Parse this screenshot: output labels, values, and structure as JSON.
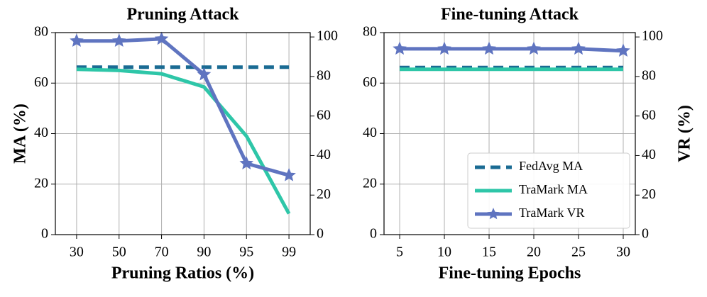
{
  "chart_data": [
    {
      "type": "line",
      "title": "Pruning Attack",
      "xlabel": "Pruning Ratios (%)",
      "ylabel": "MA (%)",
      "categories": [
        "30",
        "50",
        "70",
        "90",
        "95",
        "99"
      ],
      "ylim": [
        0,
        80
      ],
      "yticks": [
        0,
        20,
        40,
        60,
        80
      ],
      "y2lim": [
        0,
        102.2
      ],
      "y2ticks": [
        0,
        20,
        40,
        60,
        80,
        100
      ],
      "grid": true,
      "series": [
        {
          "name": "FedAvg MA",
          "color": "#1a6b93",
          "style": "dashed",
          "values": [
            66.3,
            66.3,
            66.3,
            66.3,
            66.3,
            66.3
          ]
        },
        {
          "name": "TraMark MA",
          "color": "#2ec6a8",
          "style": "solid",
          "values": [
            65.5,
            65,
            63.7,
            58.5,
            39,
            8.3
          ]
        },
        {
          "name": "TraMark VR",
          "color": "#5f74c0",
          "style": "solid",
          "marker": "star",
          "axis": "y2",
          "values": [
            98,
            98,
            99,
            81,
            36,
            30
          ]
        }
      ]
    },
    {
      "type": "line",
      "title": "Fine-tuning Attack",
      "xlabel": "Fine-tuning Epochs",
      "y2label": "VR (%)",
      "x": [
        5,
        10,
        15,
        20,
        25,
        30
      ],
      "xlim": [
        3.25,
        31.35
      ],
      "xticks": [
        5,
        10,
        15,
        20,
        25,
        30
      ],
      "ylim": [
        0,
        80
      ],
      "yticks": [
        0,
        20,
        40,
        60,
        80
      ],
      "y2lim": [
        0,
        102.2
      ],
      "y2ticks": [
        0,
        20,
        40,
        60,
        80,
        100
      ],
      "grid": true,
      "legend": "lower right",
      "series": [
        {
          "name": "FedAvg MA",
          "color": "#1a6b93",
          "style": "dashed",
          "values": [
            66.2,
            66.2,
            66.2,
            66.2,
            66.2,
            66.2
          ]
        },
        {
          "name": "TraMark MA",
          "color": "#2ec6a8",
          "style": "solid",
          "values": [
            65.5,
            65.5,
            65.5,
            65.5,
            65.5,
            65.5
          ]
        },
        {
          "name": "TraMark VR",
          "color": "#5f74c0",
          "style": "solid",
          "marker": "star",
          "axis": "y2",
          "values": [
            94,
            94,
            94,
            94,
            94,
            93
          ]
        }
      ]
    }
  ]
}
